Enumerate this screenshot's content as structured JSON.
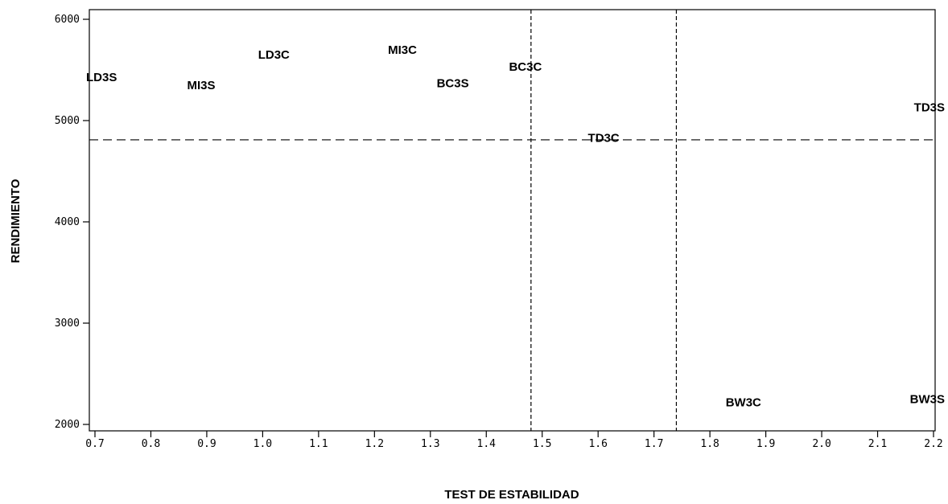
{
  "chart_data": {
    "type": "scatter",
    "xlabel": "TEST DE ESTABILIDAD",
    "ylabel": "RENDIMIENTO",
    "xlim": [
      0.7,
      2.2
    ],
    "ylim": [
      2000,
      6100
    ],
    "x_ticks": [
      0.7,
      0.8,
      0.9,
      1.0,
      1.1,
      1.2,
      1.3,
      1.4,
      1.5,
      1.6,
      1.7,
      1.8,
      1.9,
      2.0,
      2.1,
      2.2
    ],
    "x_tick_labels": [
      "0.7",
      "0.8",
      "0.9",
      "1.0",
      "1.1",
      "1.2",
      "1.3",
      "1.4",
      "1.5",
      "1.6",
      "1.7",
      "1.8",
      "1.9",
      "2.0",
      "2.1",
      "2.2"
    ],
    "y_ticks": [
      2000,
      3000,
      4000,
      5000,
      6000
    ],
    "y_tick_labels": [
      "2000",
      "3000",
      "4000",
      "5000",
      "6000"
    ],
    "grid": false,
    "reference_lines": {
      "horizontal": [
        4810
      ],
      "vertical": [
        1.48,
        1.74
      ],
      "style": "dashed"
    },
    "points": [
      {
        "label": "LD3S",
        "x": 0.72,
        "y": 5430
      },
      {
        "label": "MI3S",
        "x": 0.89,
        "y": 5350
      },
      {
        "label": "LD3C",
        "x": 1.02,
        "y": 5650
      },
      {
        "label": "MI3C",
        "x": 1.25,
        "y": 5700
      },
      {
        "label": "BC3S",
        "x": 1.34,
        "y": 5370
      },
      {
        "label": "BC3C",
        "x": 1.47,
        "y": 5530
      },
      {
        "label": "TD3C",
        "x": 1.61,
        "y": 4830
      },
      {
        "label": "TD3S",
        "x": 2.18,
        "y": 5130
      },
      {
        "label": "BW3C",
        "x": 1.86,
        "y": 2220
      },
      {
        "label": "BW3S",
        "x": 2.19,
        "y": 2250
      }
    ]
  }
}
